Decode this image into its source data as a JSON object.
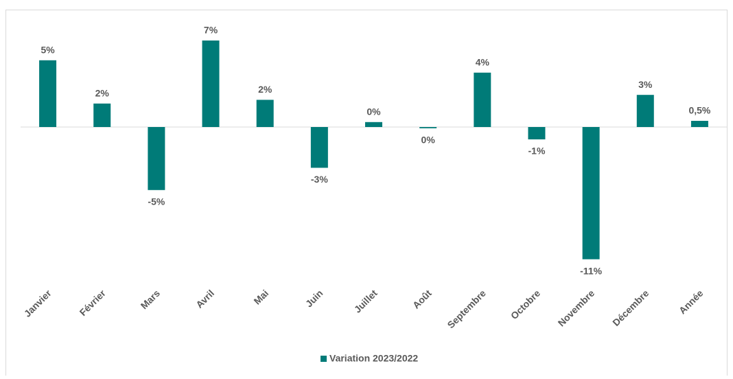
{
  "chart_data": {
    "type": "bar",
    "categories": [
      "Janvier",
      "Février",
      "Mars",
      "Avril",
      "Mai",
      "Juin",
      "Juillet",
      "Août",
      "Septembre",
      "Octobre",
      "Novembre",
      "Décembre",
      "Année"
    ],
    "series": [
      {
        "name": "Variation 2023/2022",
        "color": "#007b78",
        "values": [
          5.4,
          1.9,
          -5.1,
          7.0,
          2.2,
          -3.3,
          0.4,
          -0.1,
          4.4,
          -1.0,
          -10.7,
          2.6,
          0.5
        ],
        "value_labels": [
          "5%",
          "2%",
          "-5%",
          "7%",
          "2%",
          "-3%",
          "0%",
          "0%",
          "4%",
          "-1%",
          "-11%",
          "3%",
          "0,5%"
        ]
      }
    ],
    "ylim": [
      -12,
      8.5
    ],
    "legend": "bottom"
  }
}
